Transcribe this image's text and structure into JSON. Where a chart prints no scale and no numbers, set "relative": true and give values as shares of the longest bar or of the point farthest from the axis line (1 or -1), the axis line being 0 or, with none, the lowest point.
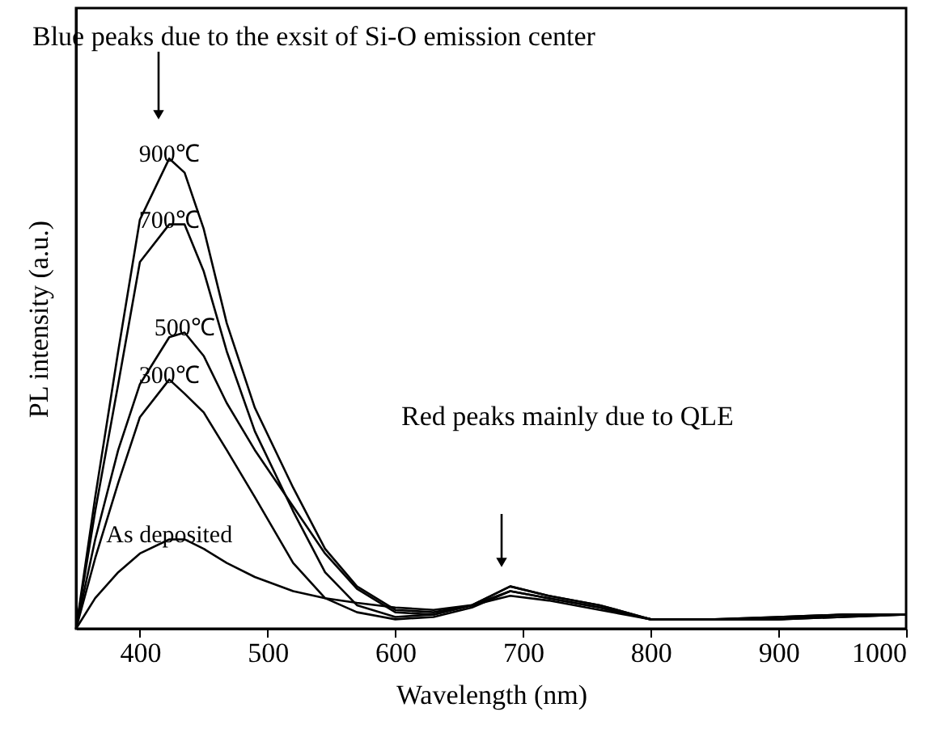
{
  "chart_data": {
    "type": "line",
    "relative": true,
    "xlabel": "Wavelength (nm)",
    "ylabel": "PL intensity (a.u.)",
    "xlim": [
      350,
      1000
    ],
    "xticks": [
      400,
      500,
      600,
      700,
      800,
      900,
      1000
    ],
    "grid": false,
    "marker": "none",
    "line_style": "solid",
    "x": [
      350,
      365,
      383,
      400,
      423,
      435,
      450,
      468,
      490,
      520,
      545,
      570,
      600,
      630,
      660,
      690,
      720,
      760,
      800,
      850,
      900,
      950,
      1000
    ],
    "series": [
      {
        "name": "900℃",
        "color": "#000000",
        "values": [
          0,
          0.28,
          0.59,
          0.87,
          1.0,
          0.97,
          0.85,
          0.65,
          0.47,
          0.3,
          0.17,
          0.09,
          0.04,
          0.035,
          0.05,
          0.09,
          0.07,
          0.05,
          0.02,
          0.02,
          0.025,
          0.03,
          0.03
        ]
      },
      {
        "name": "700℃",
        "color": "#000000",
        "values": [
          0,
          0.25,
          0.52,
          0.78,
          0.86,
          0.86,
          0.76,
          0.59,
          0.42,
          0.25,
          0.12,
          0.05,
          0.025,
          0.03,
          0.05,
          0.09,
          0.07,
          0.05,
          0.02,
          0.02,
          0.025,
          0.03,
          0.03
        ]
      },
      {
        "name": "500℃",
        "color": "#000000",
        "values": [
          0,
          0.19,
          0.38,
          0.52,
          0.62,
          0.63,
          0.58,
          0.48,
          0.38,
          0.26,
          0.16,
          0.085,
          0.035,
          0.03,
          0.05,
          0.08,
          0.065,
          0.045,
          0.02,
          0.02,
          0.02,
          0.025,
          0.03
        ]
      },
      {
        "name": "300℃",
        "color": "#000000",
        "values": [
          0,
          0.15,
          0.31,
          0.45,
          0.53,
          0.5,
          0.46,
          0.38,
          0.28,
          0.14,
          0.065,
          0.035,
          0.02,
          0.025,
          0.045,
          0.08,
          0.065,
          0.045,
          0.02,
          0.02,
          0.02,
          0.025,
          0.03
        ]
      },
      {
        "name": "As deposited",
        "color": "#000000",
        "values": [
          0,
          0.065,
          0.12,
          0.16,
          0.19,
          0.19,
          0.17,
          0.14,
          0.11,
          0.08,
          0.065,
          0.055,
          0.045,
          0.04,
          0.05,
          0.07,
          0.06,
          0.04,
          0.02,
          0.02,
          0.02,
          0.03,
          0.03
        ]
      }
    ],
    "annotations": [
      "Blue peaks due to the exsit of Si-O emission center",
      "Red peaks mainly due to QLE"
    ]
  }
}
